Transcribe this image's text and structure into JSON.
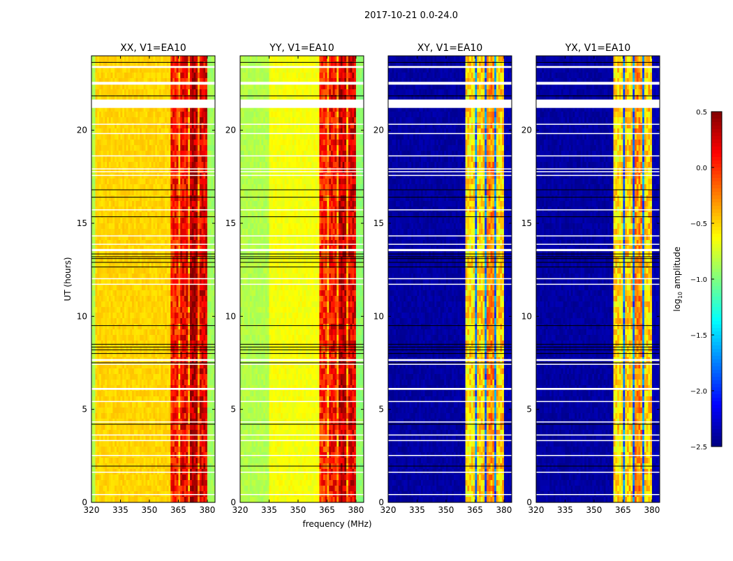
{
  "chart_data": {
    "type": "heatmap",
    "title": "2017-10-21 0.0-24.0",
    "xlabel": "frequency (MHz)",
    "ylabel": "UT (hours)",
    "xlim": [
      320,
      384
    ],
    "ylim": [
      0,
      24
    ],
    "xticks": [
      "320",
      "335",
      "350",
      "365",
      "380"
    ],
    "yticks": [
      "0",
      "5",
      "10",
      "15",
      "20"
    ],
    "colorbar": {
      "label_main": "log",
      "label_sub": "10",
      "label_rest": " amplitude",
      "range": [
        -2.5,
        0.5
      ],
      "ticks": [
        "0.5",
        "0.0",
        "−0.5",
        "−1.0",
        "−1.5",
        "−2.0",
        "−2.5"
      ],
      "tick_values": [
        0.5,
        0.0,
        -0.5,
        -1.0,
        -1.5,
        -2.0,
        -2.5
      ],
      "colormap": "jet"
    },
    "panels": [
      {
        "title": "XX, V1=EA10",
        "background": [
          [
            320,
            322,
            -0.85
          ],
          [
            322,
            361,
            -0.5
          ],
          [
            380,
            384,
            -0.9
          ]
        ],
        "bands": [
          [
            361,
            365,
            0.05
          ],
          [
            365,
            366,
            -0.3
          ],
          [
            366,
            370,
            0.15
          ],
          [
            370,
            371,
            -0.3
          ],
          [
            371,
            375,
            0.35
          ],
          [
            375,
            376,
            -0.25
          ],
          [
            376,
            380,
            0.2
          ]
        ]
      },
      {
        "title": "YY, V1=EA10",
        "background": [
          [
            320,
            335,
            -0.85
          ],
          [
            335,
            361,
            -0.65
          ],
          [
            380,
            384,
            -0.95
          ]
        ],
        "bands": [
          [
            361,
            365,
            0.0
          ],
          [
            365,
            366,
            -0.35
          ],
          [
            366,
            370,
            0.1
          ],
          [
            370,
            371,
            -0.3
          ],
          [
            371,
            375,
            0.3
          ],
          [
            375,
            376,
            -0.3
          ],
          [
            376,
            380,
            0.2
          ]
        ]
      },
      {
        "title": "XY, V1=EA10",
        "background": [
          [
            320,
            360,
            -2.4
          ],
          [
            380,
            384,
            -2.35
          ]
        ],
        "bands": [
          [
            360,
            365,
            -0.55
          ],
          [
            365,
            366,
            -1.8
          ],
          [
            366,
            370,
            -0.5
          ],
          [
            370,
            371,
            -1.8
          ],
          [
            371,
            375,
            -0.3
          ],
          [
            375,
            376,
            -1.8
          ],
          [
            376,
            380,
            -0.5
          ]
        ]
      },
      {
        "title": "YX, V1=EA10",
        "background": [
          [
            320,
            360,
            -2.4
          ],
          [
            380,
            384,
            -2.35
          ]
        ],
        "bands": [
          [
            360,
            365,
            -0.55
          ],
          [
            365,
            366,
            -1.8
          ],
          [
            366,
            370,
            -0.5
          ],
          [
            370,
            371,
            -1.8
          ],
          [
            371,
            375,
            -0.3
          ],
          [
            375,
            376,
            -1.8
          ],
          [
            376,
            380,
            -0.5
          ]
        ]
      }
    ],
    "flagged_hours_white": [
      [
        23.35,
        23.45
      ],
      [
        22.45,
        22.6
      ],
      [
        21.2,
        21.65
      ],
      [
        20.3,
        20.35
      ],
      [
        19.8,
        19.85
      ],
      [
        18.6,
        18.65
      ],
      [
        17.9,
        17.95
      ],
      [
        17.75,
        17.8
      ],
      [
        17.55,
        17.6
      ],
      [
        15.7,
        15.75
      ],
      [
        14.3,
        14.35
      ],
      [
        13.85,
        13.9
      ],
      [
        13.5,
        13.62
      ],
      [
        12.0,
        12.05
      ],
      [
        11.7,
        11.75
      ],
      [
        7.6,
        7.7
      ],
      [
        7.4,
        7.45
      ],
      [
        6.05,
        6.15
      ],
      [
        5.4,
        5.45
      ],
      [
        4.3,
        4.35
      ],
      [
        3.6,
        3.65
      ],
      [
        3.3,
        3.35
      ],
      [
        2.5,
        2.55
      ],
      [
        1.6,
        1.65
      ],
      [
        0.4,
        0.45
      ]
    ],
    "flagged_hours_black": [
      23.65,
      21.85,
      16.8,
      16.4,
      15.35,
      13.35,
      13.2,
      13.1,
      12.9,
      12.65,
      9.5,
      8.5,
      8.35,
      8.2,
      8.0,
      7.5,
      4.2,
      1.95
    ]
  }
}
